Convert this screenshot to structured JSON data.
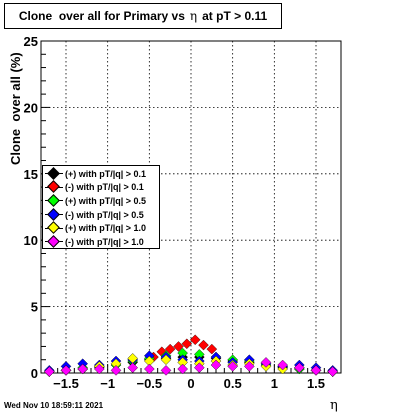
{
  "chart_data": {
    "type": "scatter",
    "title_prefix": "Clone  over all for Primary vs",
    "title_eta": "η",
    "title_suffix": "at pT > 0.11",
    "xlabel": "η",
    "ylabel": "Clone  over all (%)",
    "xlim": [
      -1.8,
      1.8
    ],
    "ylim": [
      0,
      25
    ],
    "x_ticks": [
      -1.5,
      -1,
      -0.5,
      0,
      0.5,
      1,
      1.5
    ],
    "x_tick_labels": [
      "−1.5",
      "−1",
      "−0.5",
      "0",
      "0.5",
      "1",
      "1.5"
    ],
    "y_ticks": [
      0,
      5,
      10,
      15,
      20,
      25
    ],
    "y_tick_labels": [
      "0",
      "5",
      "10",
      "15",
      "20",
      "25"
    ],
    "grid": true,
    "legend_position": "upper-left",
    "series": [
      {
        "name": "(+) with pT/|q| > 0.1",
        "color": "#000000",
        "x": [
          -1.7,
          -1.5,
          -1.3,
          -1.1,
          -0.9,
          -0.7,
          -0.5,
          -0.3,
          -0.1,
          0.1,
          0.3,
          0.5,
          0.7,
          0.9,
          1.1,
          1.3,
          1.5,
          1.7
        ],
        "values": [
          0.1,
          0.2,
          0.3,
          0.4,
          0.6,
          0.8,
          1.0,
          1.1,
          1.2,
          1.2,
          1.1,
          0.9,
          0.8,
          0.6,
          0.4,
          0.3,
          0.2,
          0.1
        ]
      },
      {
        "name": "(-) with pT/|q| > 0.1",
        "color": "#ff0000",
        "x": [
          -0.45,
          -0.35,
          -0.25,
          -0.15,
          -0.05,
          0.05,
          0.15,
          0.25
        ],
        "values": [
          1.2,
          1.6,
          1.8,
          2.0,
          2.2,
          2.5,
          2.1,
          1.8
        ]
      },
      {
        "name": "(+) with pT/|q| > 0.5",
        "color": "#00ff00",
        "x": [
          -1.7,
          -1.5,
          -1.3,
          -1.1,
          -0.9,
          -0.7,
          -0.5,
          -0.3,
          -0.1,
          0.1,
          0.3,
          0.5,
          0.7,
          0.9,
          1.1,
          1.3,
          1.5,
          1.7
        ],
        "values": [
          0.1,
          0.2,
          0.4,
          0.5,
          0.6,
          0.9,
          1.1,
          1.3,
          1.5,
          1.4,
          1.2,
          1.0,
          0.9,
          0.6,
          0.5,
          0.3,
          0.2,
          0.1
        ]
      },
      {
        "name": "(-) with pT/|q| > 0.5",
        "color": "#0000ff",
        "x": [
          -1.7,
          -1.5,
          -1.3,
          -1.1,
          -0.9,
          -0.7,
          -0.5,
          -0.3,
          -0.1,
          0.1,
          0.3,
          0.5,
          0.7,
          0.9,
          1.1,
          1.3,
          1.5,
          1.7
        ],
        "values": [
          0.2,
          0.5,
          0.7,
          0.6,
          0.9,
          1.0,
          1.3,
          1.2,
          1.0,
          0.9,
          1.2,
          0.8,
          1.0,
          0.7,
          0.5,
          0.6,
          0.4,
          0.2
        ]
      },
      {
        "name": "(+) with pT/|q| > 1.0",
        "color": "#ffff00",
        "x": [
          -1.7,
          -1.5,
          -1.3,
          -1.1,
          -0.9,
          -0.7,
          -0.5,
          -0.3,
          -0.1,
          0.1,
          0.3,
          0.5,
          0.7,
          0.9,
          1.1,
          1.3,
          1.5,
          1.7
        ],
        "values": [
          0.1,
          0.2,
          0.3,
          0.5,
          0.7,
          1.1,
          0.9,
          1.0,
          0.8,
          0.7,
          0.9,
          0.6,
          0.7,
          0.5,
          0.3,
          0.4,
          0.2,
          0.1
        ]
      },
      {
        "name": "(-) with pT/|q| > 1.0",
        "color": "#ff00ff",
        "x": [
          -1.7,
          -1.5,
          -1.3,
          -1.1,
          -0.9,
          -0.7,
          -0.5,
          -0.3,
          -0.1,
          0.1,
          0.3,
          0.5,
          0.7,
          0.9,
          1.1,
          1.3,
          1.5,
          1.7
        ],
        "values": [
          0.1,
          0.2,
          0.3,
          0.3,
          0.2,
          0.4,
          0.3,
          0.2,
          0.3,
          0.4,
          0.6,
          0.5,
          0.5,
          0.8,
          0.6,
          0.4,
          0.2,
          0.1
        ]
      }
    ]
  },
  "timestamp": "Wed Nov 10 18:59:11 2021"
}
